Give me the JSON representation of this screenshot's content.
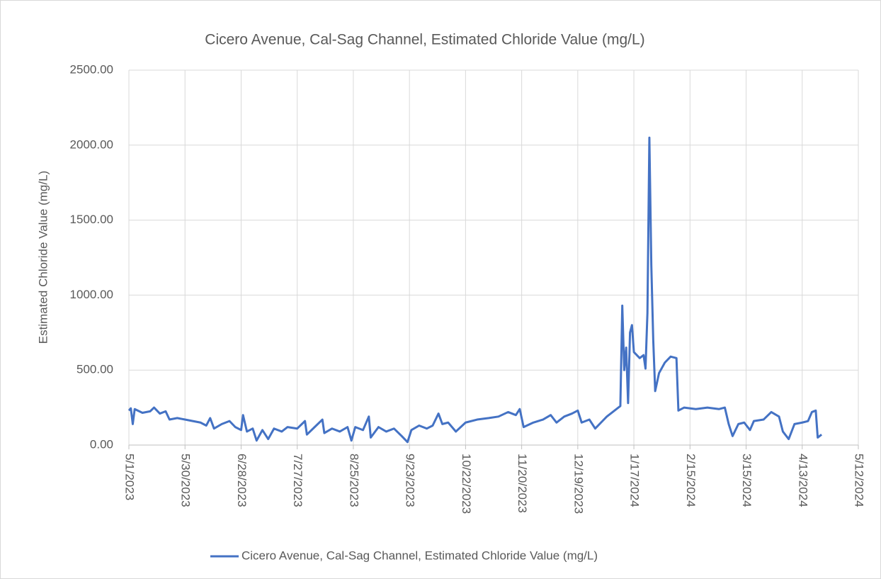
{
  "chart_data": {
    "type": "line",
    "title": "Cicero Avenue, Cal-Sag Channel, Estimated Chloride Value (mg/L)",
    "y_label": "Estimated Chloride Value (mg/L)",
    "xlim": [
      "5/1/2023",
      "5/12/2024"
    ],
    "xticks": [
      "5/1/2023",
      "5/30/2023",
      "6/28/2023",
      "7/27/2023",
      "8/25/2023",
      "9/23/2023",
      "10/22/2023",
      "11/20/2023",
      "12/19/2023",
      "1/17/2024",
      "2/15/2024",
      "3/15/2024",
      "4/13/2024",
      "5/12/2024"
    ],
    "ylim": [
      0,
      2500
    ],
    "yticks": [
      {
        "value": 0,
        "label": "0.00"
      },
      {
        "value": 500,
        "label": "500.00"
      },
      {
        "value": 1000,
        "label": "1000.00"
      },
      {
        "value": 1500,
        "label": "1500.00"
      },
      {
        "value": 2000,
        "label": "2000.00"
      },
      {
        "value": 2500,
        "label": "2500.00"
      }
    ],
    "grid": true,
    "legend": "bottom",
    "x": [
      "5/1/2023",
      "5/2/2023",
      "5/3/2023",
      "5/4/2023",
      "5/8/2023",
      "5/12/2023",
      "5/14/2023",
      "5/17/2023",
      "5/20/2023",
      "5/22/2023",
      "5/26/2023",
      "5/30/2023",
      "6/3/2023",
      "6/7/2023",
      "6/10/2023",
      "6/12/2023",
      "6/14/2023",
      "6/18/2023",
      "6/22/2023",
      "6/25/2023",
      "6/28/2023",
      "6/29/2023",
      "7/1/2023",
      "7/4/2023",
      "7/6/2023",
      "7/9/2023",
      "7/12/2023",
      "7/15/2023",
      "7/19/2023",
      "7/22/2023",
      "7/27/2023",
      "7/31/2023",
      "8/1/2023",
      "8/5/2023",
      "8/9/2023",
      "8/10/2023",
      "8/14/2023",
      "8/18/2023",
      "8/22/2023",
      "8/24/2023",
      "8/26/2023",
      "8/30/2023",
      "9/2/2023",
      "9/3/2023",
      "9/7/2023",
      "9/11/2023",
      "9/15/2023",
      "9/19/2023",
      "9/22/2023",
      "9/24/2023",
      "9/28/2023",
      "10/2/2023",
      "10/5/2023",
      "10/8/2023",
      "10/10/2023",
      "10/13/2023",
      "10/17/2023",
      "10/22/2023",
      "10/28/2023",
      "11/3/2023",
      "11/8/2023",
      "11/13/2023",
      "11/17/2023",
      "11/19/2023",
      "11/21/2023",
      "11/26/2023",
      "12/1/2023",
      "12/5/2023",
      "12/8/2023",
      "12/12/2023",
      "12/16/2023",
      "12/19/2023",
      "12/21/2023",
      "12/25/2023",
      "12/28/2023",
      "12/31/2023",
      "1/3/2024",
      "1/7/2024",
      "1/10/2024",
      "1/11/2024",
      "1/12/2024",
      "1/13/2024",
      "1/14/2024",
      "1/15/2024",
      "1/16/2024",
      "1/17/2024",
      "1/20/2024",
      "1/22/2024",
      "1/23/2024",
      "1/24/2024",
      "1/25/2024",
      "1/26/2024",
      "1/27/2024",
      "1/28/2024",
      "1/30/2024",
      "2/2/2024",
      "2/5/2024",
      "2/8/2024",
      "2/9/2024",
      "2/12/2024",
      "2/18/2024",
      "2/24/2024",
      "3/1/2024",
      "3/4/2024",
      "3/6/2024",
      "3/8/2024",
      "3/11/2024",
      "3/14/2024",
      "3/17/2024",
      "3/19/2024",
      "3/24/2024",
      "3/28/2024",
      "4/1/2024",
      "4/3/2024",
      "4/6/2024",
      "4/9/2024",
      "4/13/2024",
      "4/16/2024",
      "4/18/2024",
      "4/20/2024",
      "4/21/2024",
      "4/23/2024"
    ],
    "series": [
      {
        "name": "Cicero Avenue, Cal-Sag Channel, Estimated Chloride Value (mg/L)",
        "color": "#4472c4",
        "values": [
          230,
          245,
          140,
          240,
          215,
          225,
          250,
          210,
          225,
          170,
          180,
          170,
          160,
          150,
          130,
          180,
          110,
          140,
          160,
          120,
          100,
          200,
          90,
          110,
          30,
          100,
          40,
          110,
          90,
          120,
          110,
          160,
          70,
          120,
          170,
          80,
          110,
          90,
          120,
          30,
          120,
          100,
          190,
          50,
          120,
          90,
          110,
          60,
          20,
          100,
          130,
          110,
          130,
          210,
          140,
          150,
          90,
          150,
          170,
          180,
          190,
          220,
          200,
          240,
          120,
          150,
          170,
          200,
          150,
          190,
          210,
          230,
          150,
          170,
          110,
          150,
          190,
          230,
          260,
          930,
          500,
          650,
          280,
          750,
          800,
          620,
          580,
          600,
          510,
          880,
          2050,
          1200,
          700,
          360,
          480,
          550,
          590,
          580,
          230,
          250,
          240,
          250,
          240,
          250,
          140,
          60,
          140,
          150,
          100,
          160,
          170,
          220,
          190,
          90,
          40,
          140,
          150,
          160,
          220,
          230,
          50,
          70
        ]
      }
    ]
  }
}
